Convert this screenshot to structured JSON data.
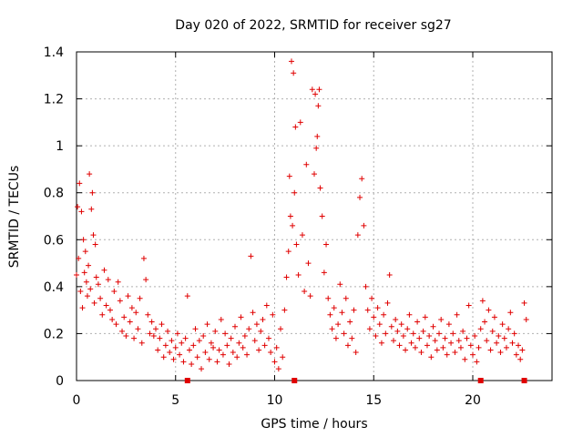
{
  "chart_data": {
    "type": "scatter",
    "title": "Day 020 of 2022, SRMTID for receiver sg27",
    "xlabel": "GPS time / hours",
    "ylabel": "SRMTID / TECUs",
    "xlim": [
      0,
      24
    ],
    "ylim": [
      0,
      1.4
    ],
    "grid": true,
    "x_ticks": [
      0,
      5,
      10,
      15,
      20
    ],
    "x_tick_labels": [
      "0",
      "5",
      "10",
      "15",
      "20"
    ],
    "y_ticks": [
      0,
      0.2,
      0.4,
      0.6,
      0.8,
      1.0,
      1.2,
      1.4
    ],
    "y_tick_labels": [
      "0",
      "0.2",
      "0.4",
      "0.6",
      "0.8",
      "1",
      "1.2",
      "1.4"
    ],
    "series": [
      {
        "name": "SRMTID",
        "marker": "+",
        "color": "#e00000",
        "x": [
          0.0,
          0.05,
          0.1,
          0.15,
          0.2,
          0.25,
          0.3,
          0.35,
          0.4,
          0.45,
          0.5,
          0.55,
          0.6,
          0.65,
          0.7,
          0.75,
          0.8,
          0.85,
          0.9,
          0.95,
          1.0,
          1.1,
          1.2,
          1.3,
          1.4,
          1.5,
          1.6,
          1.7,
          1.8,
          1.9,
          2.0,
          2.1,
          2.2,
          2.3,
          2.4,
          2.5,
          2.6,
          2.7,
          2.8,
          2.9,
          3.0,
          3.1,
          3.2,
          3.3,
          3.4,
          3.5,
          3.6,
          3.7,
          3.8,
          3.9,
          4.0,
          4.1,
          4.2,
          4.3,
          4.4,
          4.5,
          4.6,
          4.7,
          4.8,
          4.9,
          5.0,
          5.1,
          5.2,
          5.3,
          5.4,
          5.5,
          5.6,
          5.7,
          5.8,
          5.9,
          6.0,
          6.1,
          6.2,
          6.3,
          6.4,
          6.5,
          6.6,
          6.7,
          6.8,
          6.9,
          7.0,
          7.1,
          7.2,
          7.3,
          7.4,
          7.5,
          7.6,
          7.7,
          7.8,
          7.9,
          8.0,
          8.1,
          8.2,
          8.3,
          8.4,
          8.5,
          8.6,
          8.7,
          8.8,
          8.9,
          9.0,
          9.1,
          9.2,
          9.3,
          9.4,
          9.5,
          9.6,
          9.7,
          9.8,
          9.9,
          10.0,
          10.1,
          10.2,
          10.3,
          10.4,
          10.5,
          10.6,
          10.7,
          10.75,
          10.8,
          10.85,
          10.9,
          10.95,
          11.0,
          11.05,
          11.1,
          11.2,
          11.3,
          11.4,
          11.5,
          11.6,
          11.7,
          11.8,
          11.9,
          12.0,
          12.05,
          12.1,
          12.15,
          12.2,
          12.25,
          12.3,
          12.4,
          12.5,
          12.6,
          12.7,
          12.8,
          12.9,
          13.0,
          13.1,
          13.2,
          13.3,
          13.4,
          13.5,
          13.6,
          13.7,
          13.8,
          13.9,
          14.0,
          14.1,
          14.2,
          14.3,
          14.4,
          14.5,
          14.6,
          14.7,
          14.8,
          14.9,
          15.0,
          15.1,
          15.2,
          15.3,
          15.4,
          15.5,
          15.6,
          15.7,
          15.8,
          15.9,
          16.0,
          16.1,
          16.2,
          16.3,
          16.4,
          16.5,
          16.6,
          16.7,
          16.8,
          16.9,
          17.0,
          17.1,
          17.2,
          17.3,
          17.4,
          17.5,
          17.6,
          17.7,
          17.8,
          17.9,
          18.0,
          18.1,
          18.2,
          18.3,
          18.4,
          18.5,
          18.6,
          18.7,
          18.8,
          18.9,
          19.0,
          19.1,
          19.2,
          19.3,
          19.4,
          19.5,
          19.6,
          19.7,
          19.8,
          19.9,
          20.0,
          20.1,
          20.2,
          20.3,
          20.4,
          20.5,
          20.6,
          20.7,
          20.8,
          20.9,
          21.0,
          21.1,
          21.2,
          21.3,
          21.4,
          21.5,
          21.6,
          21.7,
          21.8,
          21.9,
          22.0,
          22.1,
          22.2,
          22.3,
          22.4,
          22.5,
          22.6,
          22.7
        ],
        "y": [
          0.45,
          0.74,
          0.52,
          0.84,
          0.38,
          0.72,
          0.31,
          0.6,
          0.46,
          0.55,
          0.42,
          0.36,
          0.49,
          0.88,
          0.39,
          0.73,
          0.8,
          0.62,
          0.33,
          0.58,
          0.44,
          0.41,
          0.35,
          0.28,
          0.47,
          0.32,
          0.43,
          0.3,
          0.26,
          0.38,
          0.24,
          0.42,
          0.34,
          0.21,
          0.27,
          0.19,
          0.36,
          0.25,
          0.31,
          0.18,
          0.29,
          0.22,
          0.35,
          0.16,
          0.52,
          0.43,
          0.28,
          0.2,
          0.25,
          0.19,
          0.22,
          0.13,
          0.18,
          0.24,
          0.1,
          0.15,
          0.21,
          0.12,
          0.17,
          0.09,
          0.14,
          0.2,
          0.11,
          0.16,
          0.08,
          0.18,
          0.36,
          0.13,
          0.07,
          0.15,
          0.22,
          0.1,
          0.17,
          0.05,
          0.19,
          0.12,
          0.24,
          0.09,
          0.16,
          0.14,
          0.21,
          0.08,
          0.13,
          0.26,
          0.11,
          0.2,
          0.15,
          0.07,
          0.18,
          0.12,
          0.23,
          0.1,
          0.16,
          0.27,
          0.14,
          0.19,
          0.11,
          0.22,
          0.53,
          0.29,
          0.17,
          0.24,
          0.13,
          0.21,
          0.26,
          0.15,
          0.32,
          0.18,
          0.12,
          0.28,
          0.08,
          0.14,
          0.05,
          0.22,
          0.1,
          0.3,
          0.44,
          0.55,
          0.87,
          0.7,
          1.36,
          0.66,
          1.31,
          0.8,
          1.08,
          0.58,
          0.45,
          1.1,
          0.62,
          0.38,
          0.92,
          0.5,
          0.36,
          1.24,
          0.88,
          1.22,
          0.99,
          1.04,
          1.17,
          1.24,
          0.82,
          0.7,
          0.46,
          0.58,
          0.35,
          0.28,
          0.22,
          0.31,
          0.18,
          0.24,
          0.41,
          0.29,
          0.2,
          0.35,
          0.15,
          0.25,
          0.18,
          0.3,
          0.12,
          0.62,
          0.78,
          0.86,
          0.66,
          0.4,
          0.3,
          0.22,
          0.35,
          0.27,
          0.19,
          0.31,
          0.24,
          0.16,
          0.28,
          0.2,
          0.33,
          0.45,
          0.23,
          0.17,
          0.26,
          0.21,
          0.15,
          0.24,
          0.19,
          0.13,
          0.22,
          0.28,
          0.16,
          0.2,
          0.14,
          0.25,
          0.18,
          0.12,
          0.21,
          0.27,
          0.15,
          0.19,
          0.1,
          0.23,
          0.17,
          0.13,
          0.2,
          0.26,
          0.14,
          0.18,
          0.11,
          0.24,
          0.16,
          0.2,
          0.12,
          0.28,
          0.17,
          0.14,
          0.21,
          0.09,
          0.18,
          0.32,
          0.15,
          0.11,
          0.19,
          0.08,
          0.14,
          0.22,
          0.34,
          0.25,
          0.17,
          0.3,
          0.13,
          0.21,
          0.27,
          0.16,
          0.19,
          0.12,
          0.24,
          0.18,
          0.14,
          0.22,
          0.29,
          0.16,
          0.2,
          0.11,
          0.15,
          0.09,
          0.13,
          0.33,
          0.26
        ]
      }
    ],
    "baseline_markers_x": [
      5.6,
      11.0,
      20.4,
      22.6
    ],
    "baseline_marker_y": 0.0,
    "baseline_marker_color": "#e00000",
    "grid_color": "#b0b0b0"
  }
}
